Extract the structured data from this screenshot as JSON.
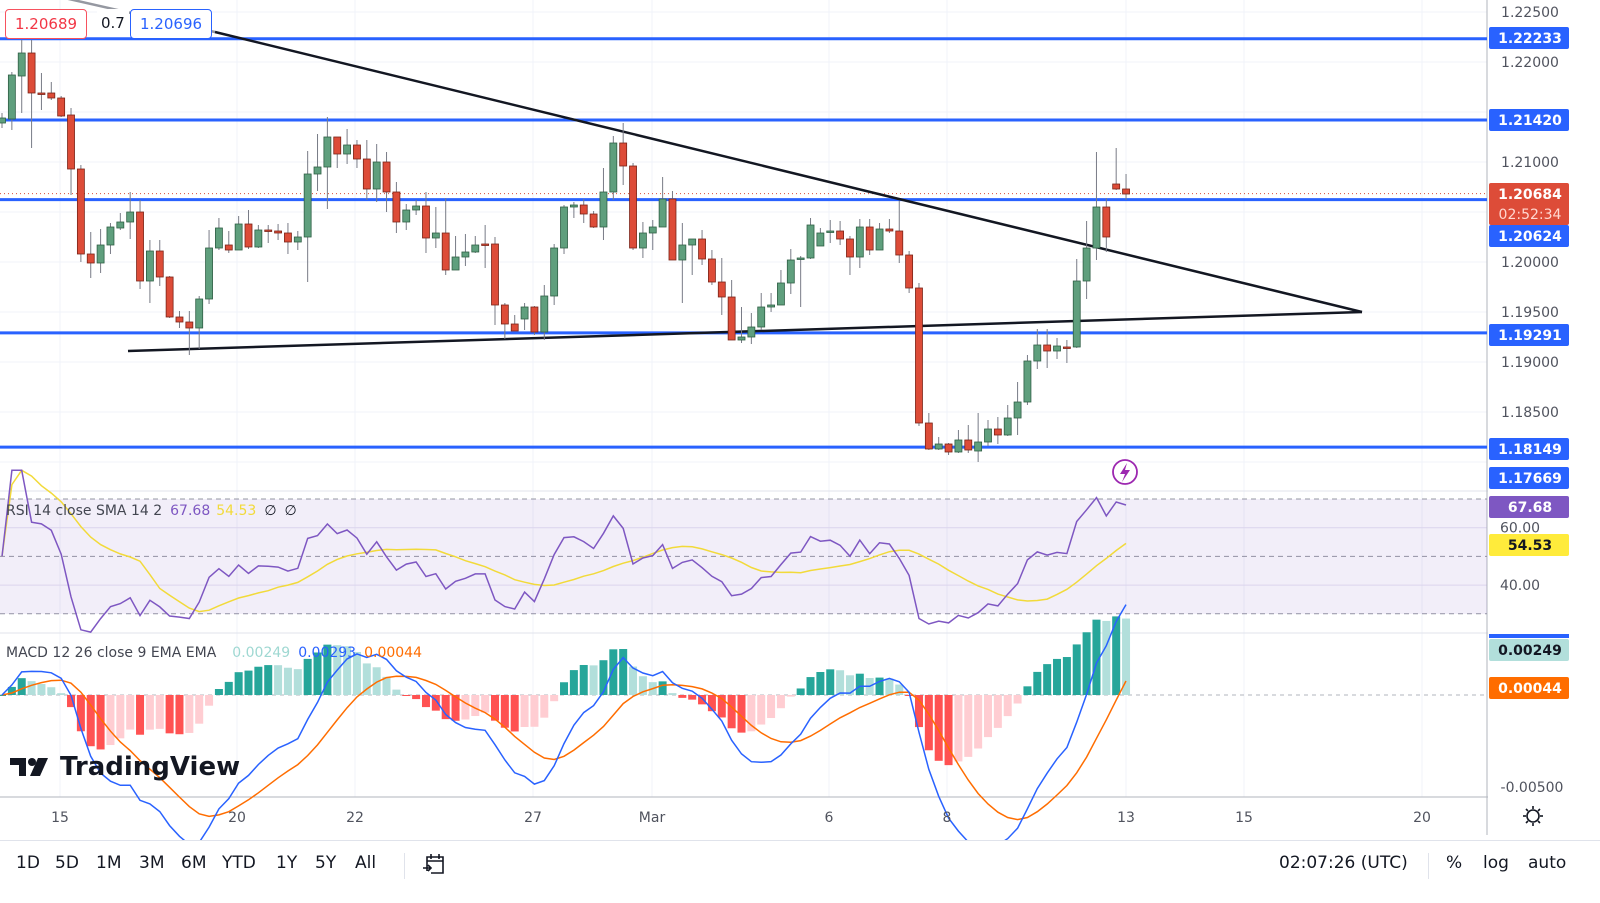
{
  "header": {
    "bid": "1.20689",
    "spread": "0.7",
    "ask": "1.20696"
  },
  "chart_data": {
    "type": "candlestick",
    "symbol_pair_prices": "EURUSD-like",
    "price_axis": {
      "ticks": [
        "1.22500",
        "1.22000",
        "1.21000",
        "1.20000",
        "1.19500",
        "1.19000",
        "1.18500"
      ],
      "tick_values": [
        1.225,
        1.22,
        1.21,
        1.2,
        1.195,
        1.19,
        1.185
      ],
      "range": [
        1.1765,
        1.2262
      ]
    },
    "time_axis": {
      "ticks": [
        "15",
        "20",
        "22",
        "27",
        "Mar",
        "6",
        "8",
        "13",
        "15",
        "20"
      ]
    },
    "horizontal_levels": [
      {
        "label": "1.22233",
        "value": 1.22233
      },
      {
        "label": "1.21420",
        "value": 1.2142
      },
      {
        "label": "1.20624",
        "value": 1.20624
      },
      {
        "label": "1.19291",
        "value": 1.19291
      },
      {
        "label": "1.18149",
        "value": 1.18149
      },
      {
        "label": "1.17669",
        "value": 1.17669
      }
    ],
    "current_price": {
      "label": "1.20684",
      "countdown": "02:52:34",
      "value": 1.20684
    },
    "ohlc": [
      [
        1.2139,
        1.2149,
        1.2134,
        1.2144
      ],
      [
        1.2143,
        1.219,
        1.2132,
        1.2187
      ],
      [
        1.2186,
        1.2222,
        1.2149,
        1.2209
      ],
      [
        1.2209,
        1.2222,
        1.2114,
        1.2169
      ],
      [
        1.2169,
        1.2189,
        1.2152,
        1.2168
      ],
      [
        1.2169,
        1.218,
        1.2162,
        1.2164
      ],
      [
        1.2164,
        1.2166,
        1.2145,
        1.2146
      ],
      [
        1.2147,
        1.2154,
        1.2067,
        1.2093
      ],
      [
        1.2093,
        1.2097,
        1.2,
        1.2008
      ],
      [
        1.2008,
        1.203,
        1.1984,
        1.1999
      ],
      [
        1.1999,
        1.2033,
        1.1989,
        1.2017
      ],
      [
        1.2017,
        1.2039,
        1.2008,
        1.2035
      ],
      [
        1.2034,
        1.2049,
        1.2032,
        1.204
      ],
      [
        1.204,
        1.207,
        1.2023,
        1.205
      ],
      [
        1.205,
        1.2062,
        1.1973,
        1.1981
      ],
      [
        1.1981,
        1.2022,
        1.1959,
        1.2011
      ],
      [
        1.2011,
        1.2022,
        1.1976,
        1.1985
      ],
      [
        1.1985,
        1.1986,
        1.1944,
        1.1945
      ],
      [
        1.1945,
        1.1951,
        1.1934,
        1.194
      ],
      [
        1.194,
        1.1951,
        1.1907,
        1.1934
      ],
      [
        1.1934,
        1.1966,
        1.1913,
        1.1963
      ],
      [
        1.1963,
        1.2032,
        1.1958,
        1.2014
      ],
      [
        1.2014,
        1.2044,
        1.2012,
        1.2034
      ],
      [
        1.2017,
        1.2031,
        1.2009,
        1.2012
      ],
      [
        1.2012,
        1.2046,
        1.2012,
        1.2038
      ],
      [
        1.2038,
        1.2052,
        1.2013,
        1.2015
      ],
      [
        1.2015,
        1.2037,
        1.2014,
        1.2032
      ],
      [
        1.2032,
        1.2037,
        1.2019,
        1.2031
      ],
      [
        1.2031,
        1.2038,
        1.2022,
        1.2029
      ],
      [
        1.2029,
        1.2039,
        1.2008,
        1.202
      ],
      [
        1.202,
        1.2031,
        1.2012,
        1.2025
      ],
      [
        1.2025,
        1.2111,
        1.198,
        1.2088
      ],
      [
        1.2088,
        1.2128,
        1.2071,
        1.2095
      ],
      [
        1.2095,
        1.2145,
        1.2053,
        1.2125
      ],
      [
        1.2125,
        1.2125,
        1.2094,
        1.2108
      ],
      [
        1.2108,
        1.2133,
        1.2098,
        1.2117
      ],
      [
        1.2117,
        1.2122,
        1.2094,
        1.2103
      ],
      [
        1.2103,
        1.2122,
        1.2062,
        1.2073
      ],
      [
        1.2073,
        1.2118,
        1.206,
        1.21
      ],
      [
        1.21,
        1.211,
        1.205,
        1.207
      ],
      [
        1.207,
        1.208,
        1.2029,
        1.204
      ],
      [
        1.204,
        1.2058,
        1.2032,
        1.2052
      ],
      [
        1.2052,
        1.2062,
        1.2047,
        1.2056
      ],
      [
        1.2056,
        1.207,
        1.2009,
        1.2024
      ],
      [
        1.2024,
        1.2055,
        1.2014,
        1.2029
      ],
      [
        1.2029,
        1.2064,
        1.1987,
        1.1992
      ],
      [
        1.1992,
        1.2026,
        1.1992,
        1.2005
      ],
      [
        1.2005,
        1.2028,
        1.1996,
        1.201
      ],
      [
        1.201,
        1.2026,
        1.2009,
        1.2017
      ],
      [
        1.2018,
        1.2037,
        1.1994,
        1.2017
      ],
      [
        1.2018,
        1.2025,
        1.1937,
        1.1957
      ],
      [
        1.1957,
        1.1959,
        1.1923,
        1.1938
      ],
      [
        1.1938,
        1.1947,
        1.1931,
        1.1931
      ],
      [
        1.1943,
        1.1959,
        1.1932,
        1.1955
      ],
      [
        1.1955,
        1.1956,
        1.1927,
        1.193
      ],
      [
        1.193,
        1.1977,
        1.1922,
        1.1966
      ],
      [
        1.1966,
        1.2018,
        1.1957,
        1.2014
      ],
      [
        1.2014,
        1.2057,
        1.2008,
        1.2055
      ],
      [
        1.2055,
        1.206,
        1.2044,
        1.2057
      ],
      [
        1.2057,
        1.2063,
        1.2039,
        1.2048
      ],
      [
        1.2048,
        1.2051,
        1.2034,
        1.2035
      ],
      [
        1.2035,
        1.2094,
        1.2022,
        1.207
      ],
      [
        1.207,
        1.2126,
        1.2062,
        1.2119
      ],
      [
        1.2119,
        1.2139,
        1.2077,
        1.2096
      ],
      [
        1.2096,
        1.2099,
        1.2012,
        1.2014
      ],
      [
        1.2014,
        1.204,
        1.2004,
        1.2029
      ],
      [
        1.2029,
        1.2042,
        1.2012,
        1.2035
      ],
      [
        1.2035,
        1.2085,
        1.2035,
        1.2063
      ],
      [
        1.2063,
        1.2071,
        1.2002,
        1.2002
      ],
      [
        1.2002,
        1.2039,
        1.1959,
        1.2017
      ],
      [
        1.2017,
        1.2023,
        1.1987,
        1.2023
      ],
      [
        1.2023,
        1.2032,
        1.1997,
        1.2003
      ],
      [
        1.2003,
        1.2012,
        1.1977,
        1.198
      ],
      [
        1.198,
        1.2004,
        1.1947,
        1.1965
      ],
      [
        1.1965,
        1.1982,
        1.1922,
        1.1922
      ],
      [
        1.1922,
        1.1955,
        1.1919,
        1.1925
      ],
      [
        1.1925,
        1.1949,
        1.1918,
        1.1935
      ],
      [
        1.1935,
        1.1969,
        1.1932,
        1.1955
      ],
      [
        1.1955,
        1.1969,
        1.195,
        1.1957
      ],
      [
        1.1957,
        1.1992,
        1.1957,
        1.1979
      ],
      [
        1.1979,
        1.2013,
        1.1968,
        1.2002
      ],
      [
        1.2003,
        1.2006,
        1.1955,
        1.2004
      ],
      [
        1.2004,
        1.2044,
        1.2003,
        1.2037
      ],
      [
        1.2016,
        1.2034,
        1.2016,
        1.2029
      ],
      [
        1.203,
        1.2042,
        1.2019,
        1.2031
      ],
      [
        1.2031,
        1.2041,
        1.2017,
        1.2023
      ],
      [
        1.2023,
        1.2026,
        1.1987,
        1.2005
      ],
      [
        1.2005,
        1.2043,
        1.1994,
        1.2035
      ],
      [
        1.2035,
        1.2043,
        1.2007,
        1.2012
      ],
      [
        1.2012,
        1.2039,
        1.2012,
        1.2033
      ],
      [
        1.2033,
        1.2043,
        1.2029,
        1.2031
      ],
      [
        1.2031,
        1.2061,
        1.1999,
        1.2007
      ],
      [
        1.2007,
        1.2011,
        1.1969,
        1.1974
      ],
      [
        1.1974,
        1.1979,
        1.1836,
        1.1839
      ],
      [
        1.1839,
        1.1849,
        1.1812,
        1.1813
      ],
      [
        1.1813,
        1.1825,
        1.1812,
        1.1818
      ],
      [
        1.1818,
        1.1819,
        1.1807,
        1.181
      ],
      [
        1.181,
        1.1832,
        1.1809,
        1.1822
      ],
      [
        1.1822,
        1.1837,
        1.1809,
        1.1812
      ],
      [
        1.1811,
        1.1849,
        1.18,
        1.182
      ],
      [
        1.182,
        1.1842,
        1.1816,
        1.1833
      ],
      [
        1.1833,
        1.1845,
        1.1818,
        1.1827
      ],
      [
        1.1827,
        1.1857,
        1.1826,
        1.1844
      ],
      [
        1.1844,
        1.188,
        1.1827,
        1.186
      ],
      [
        1.186,
        1.1907,
        1.1857,
        1.1901
      ],
      [
        1.1901,
        1.1933,
        1.1893,
        1.1917
      ],
      [
        1.1917,
        1.1933,
        1.1894,
        1.1911
      ],
      [
        1.1911,
        1.1924,
        1.1903,
        1.1916
      ],
      [
        1.1915,
        1.1922,
        1.1899,
        1.1914
      ],
      [
        1.1915,
        1.2003,
        1.1914,
        1.1981
      ],
      [
        1.1981,
        1.2041,
        1.1963,
        1.2014
      ],
      [
        1.2014,
        1.211,
        1.2002,
        1.2055
      ],
      [
        1.2055,
        1.2064,
        1.201,
        1.2025
      ],
      [
        1.2078,
        1.2114,
        1.2072,
        1.2073
      ],
      [
        1.2073,
        1.2088,
        1.2062,
        1.2068
      ]
    ],
    "rsi": {
      "title": "RSI 14 close SMA 14 2",
      "value": "67.68",
      "sma": "54.53",
      "extra1": "∅",
      "extra2": "∅",
      "ticks": [
        "60.00",
        "40.00"
      ],
      "tick_values": [
        60,
        40
      ],
      "bands": [
        70,
        50,
        30
      ]
    },
    "macd": {
      "title": "MACD 12 26 close 9 EMA EMA",
      "histogram": "0.00249",
      "macd": "0.00293",
      "signal": "0.00044",
      "ticks": [
        "-0.00500"
      ],
      "tick_values": [
        -0.005
      ]
    },
    "colors": {
      "up": "#5f9f7d",
      "down": "#dd4c38",
      "level": "#2962ff",
      "rsi": "#7e57c2",
      "rsi_sma": "#f2da3a",
      "macd": "#2962ff",
      "signal": "#ff6d00",
      "hist_up": "#26a69a",
      "hist_up_light": "#b2dfdb",
      "hist_down": "#ff5252",
      "hist_down_light": "#ffcdd2"
    }
  },
  "branding": {
    "logo_text": "TradingView"
  },
  "toolbar": {
    "timeframes": [
      "1D",
      "5D",
      "1M",
      "3M",
      "6M",
      "YTD",
      "1Y",
      "5Y",
      "All"
    ],
    "clock": "02:07:26 (UTC)",
    "percent": "%",
    "log": "log",
    "auto": "auto"
  }
}
